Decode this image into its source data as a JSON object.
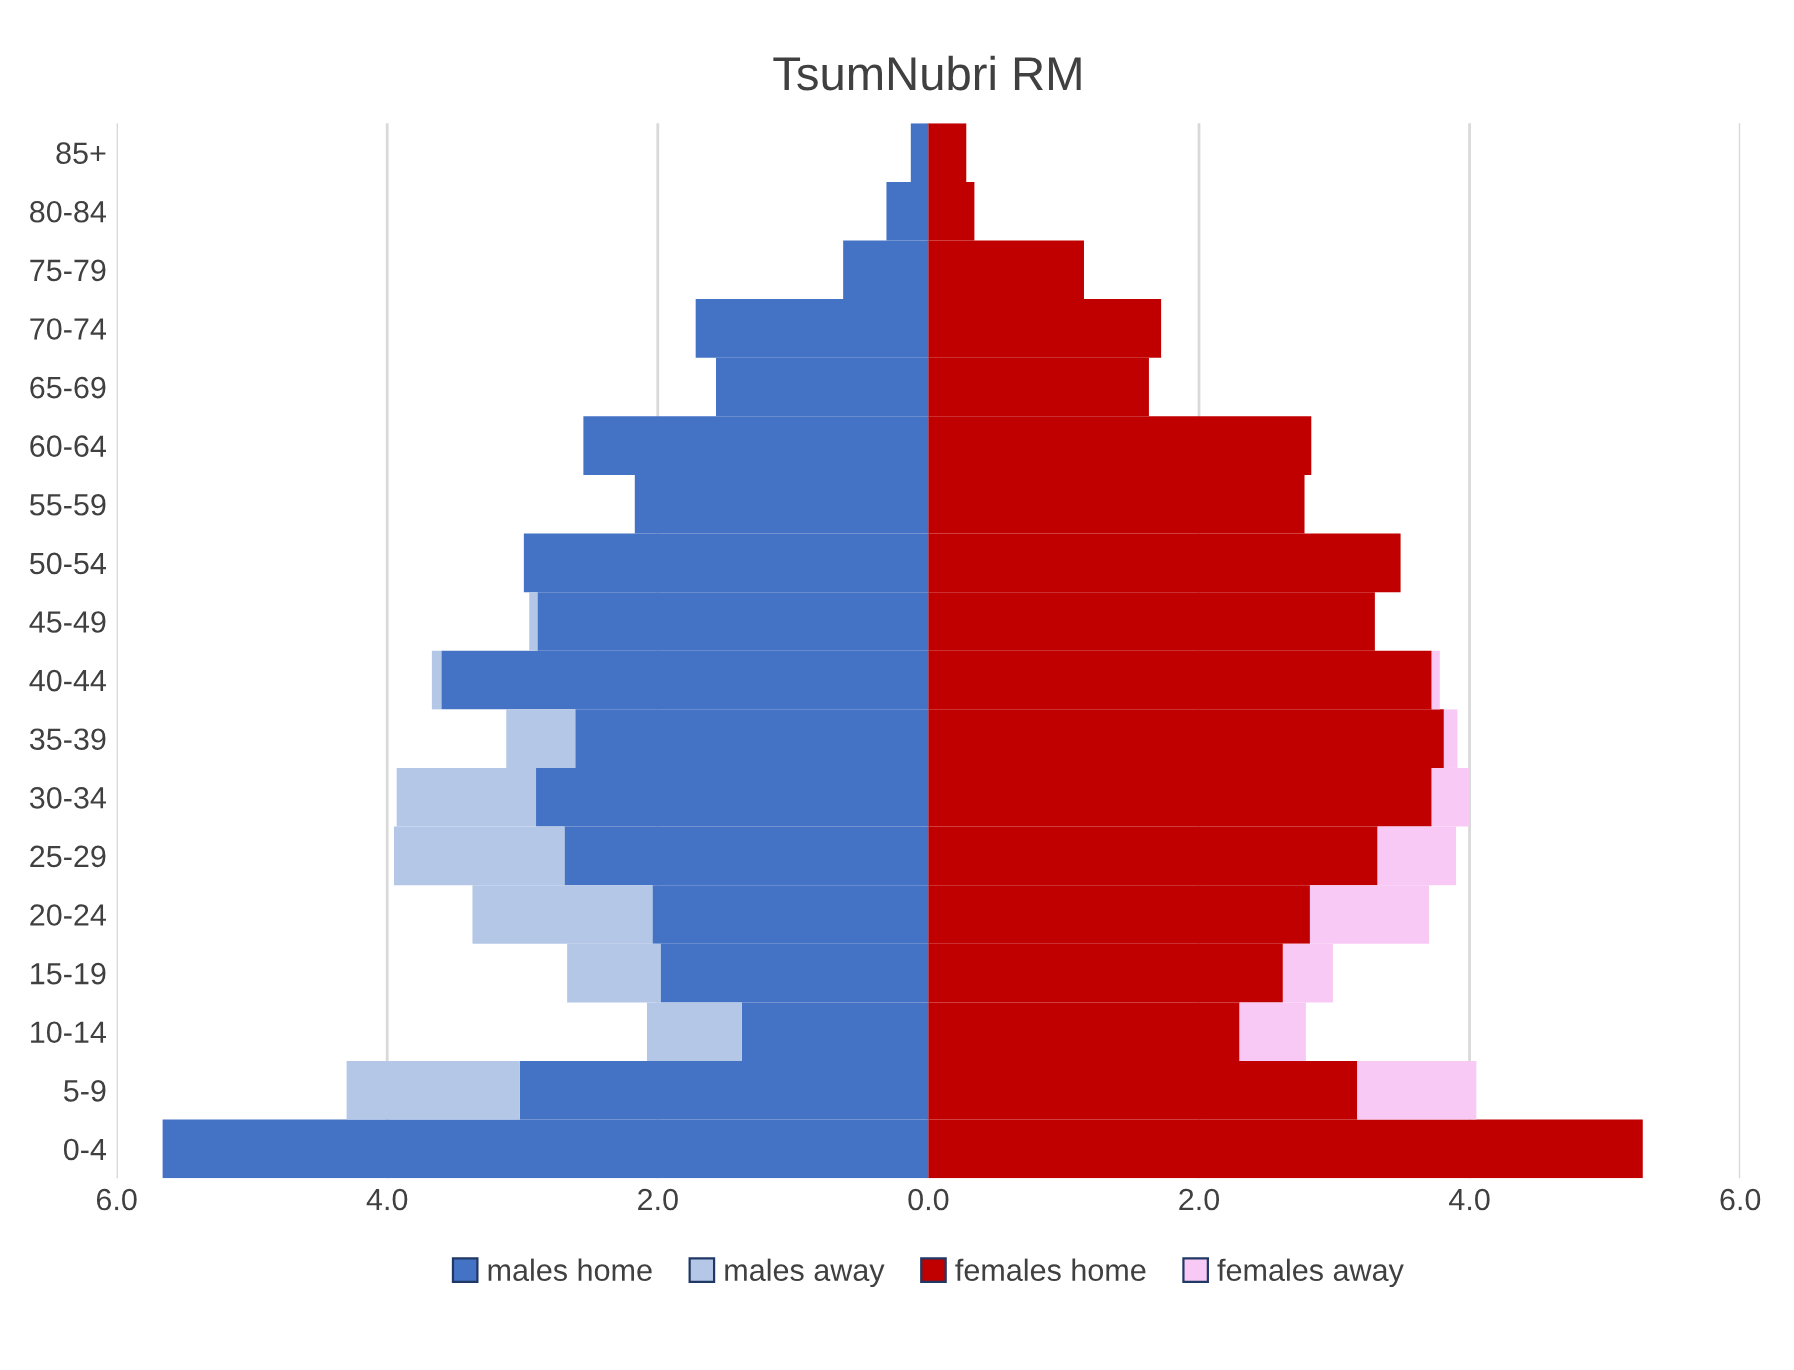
{
  "chart_data": {
    "type": "bar",
    "orientation": "horizontal",
    "stacked": true,
    "title": "TsumNubri RM",
    "categories": [
      "85+",
      "80-84",
      "75-79",
      "70-74",
      "65-69",
      "60-64",
      "55-59",
      "50-54",
      "45-49",
      "40-44",
      "35-39",
      "30-34",
      "25-29",
      "20-24",
      "15-19",
      "10-14",
      "5-9",
      "0-4"
    ],
    "series": [
      {
        "name": "males home",
        "color": "#4472c4",
        "values": [
          -0.13,
          -0.31,
          -0.63,
          -1.72,
          -1.57,
          -2.55,
          -2.17,
          -2.99,
          -2.89,
          -3.6,
          -2.61,
          -2.9,
          -2.69,
          -2.04,
          -1.98,
          -1.38,
          -3.02,
          -5.66
        ]
      },
      {
        "name": "males away",
        "color": "#b4c7e7",
        "values": [
          0,
          0,
          0,
          0,
          0,
          0,
          0,
          0,
          -0.06,
          -0.07,
          -0.51,
          -1.03,
          -1.26,
          -1.33,
          -0.69,
          -0.7,
          -1.28,
          0
        ]
      },
      {
        "name": "females home",
        "color": "#c00000",
        "values": [
          0.28,
          0.34,
          1.15,
          1.72,
          1.63,
          2.83,
          2.78,
          3.49,
          3.3,
          3.72,
          3.81,
          3.72,
          3.32,
          2.82,
          2.62,
          2.3,
          3.17,
          5.28
        ]
      },
      {
        "name": "females away",
        "color": "#f9c9f5",
        "values": [
          0,
          0,
          0,
          0,
          0,
          0,
          0,
          0,
          0,
          0.06,
          0.1,
          0.28,
          0.58,
          0.88,
          0.37,
          0.49,
          0.88,
          0
        ]
      }
    ],
    "xlim": [
      -6,
      6
    ],
    "xticks": [
      {
        "value": -6,
        "label": "6.0"
      },
      {
        "value": -4,
        "label": "4.0"
      },
      {
        "value": -2,
        "label": "2.0"
      },
      {
        "value": 0,
        "label": "0.0"
      },
      {
        "value": 2,
        "label": "2.0"
      },
      {
        "value": 4,
        "label": "4.0"
      },
      {
        "value": 6,
        "label": "6.0"
      }
    ],
    "grid": "x",
    "legend": "bottom"
  }
}
